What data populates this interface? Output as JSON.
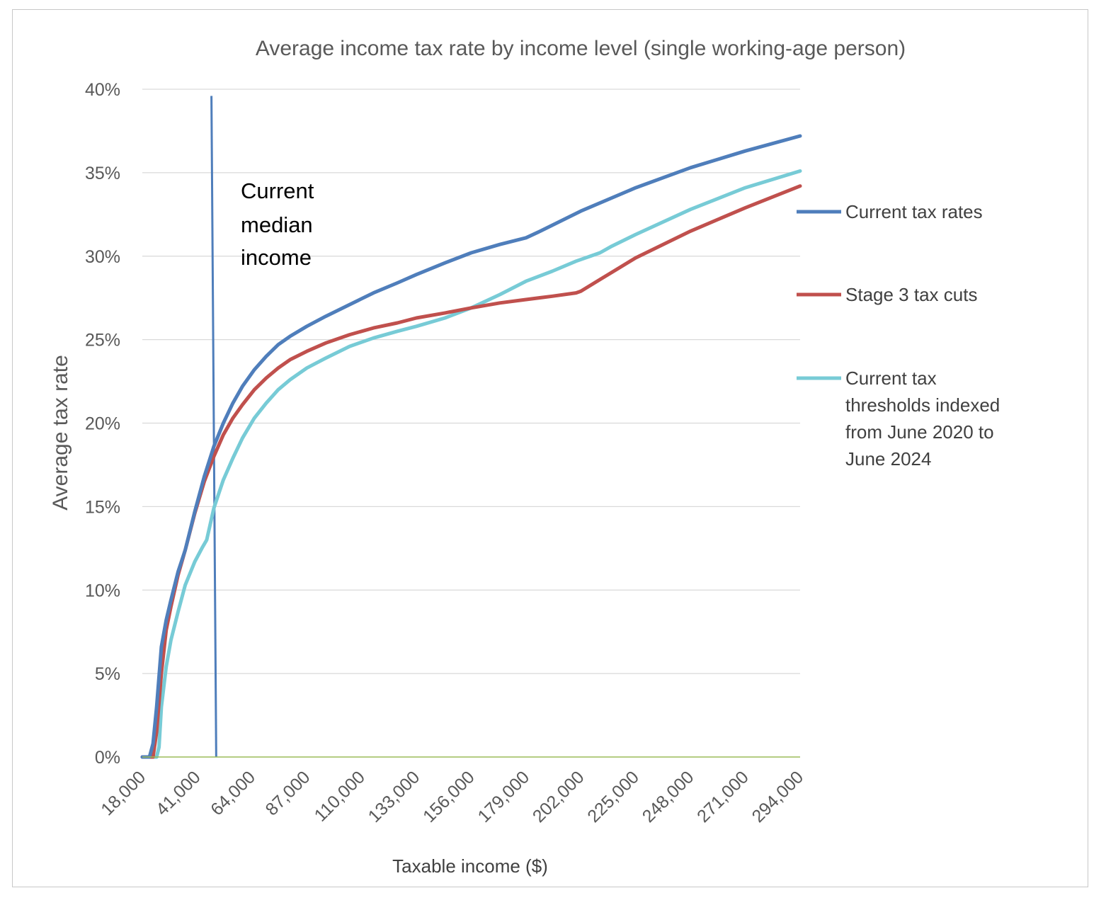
{
  "chart_data": {
    "type": "line",
    "title": "Average income tax rate by income level (single working-age person)",
    "xlabel": "Taxable income ($)",
    "ylabel": "Average tax rate",
    "xlim": [
      18000,
      294000
    ],
    "ylim": [
      0,
      40
    ],
    "x_ticks": [
      18000,
      41000,
      64000,
      87000,
      110000,
      133000,
      156000,
      179000,
      202000,
      225000,
      248000,
      271000,
      294000
    ],
    "x_tick_labels": [
      "18,000",
      "41,000",
      "64,000",
      "87,000",
      "110,000",
      "133,000",
      "156,000",
      "179,000",
      "202,000",
      "225,000",
      "248,000",
      "271,000",
      "294,000"
    ],
    "y_ticks": [
      0,
      5,
      10,
      15,
      20,
      25,
      30,
      35,
      40
    ],
    "y_tick_labels": [
      "0%",
      "5%",
      "10%",
      "15%",
      "20%",
      "25%",
      "30%",
      "35%",
      "40%"
    ],
    "grid": true,
    "legend_position": "right",
    "series": [
      {
        "name": "Current tax rates",
        "color": "#4f7ebb",
        "x": [
          18000,
          21000,
          22500,
          24000,
          26000,
          28000,
          30000,
          33000,
          36000,
          40000,
          44000,
          48000,
          52000,
          56000,
          60000,
          65000,
          70000,
          75000,
          80000,
          87000,
          95000,
          105000,
          115000,
          125000,
          133000,
          145000,
          156000,
          168000,
          179000,
          185000,
          202000,
          225000,
          248000,
          271000,
          294000
        ],
        "y": [
          0,
          0,
          0.8,
          3.0,
          6.6,
          8.2,
          9.4,
          11.1,
          12.4,
          14.7,
          16.8,
          18.6,
          20.0,
          21.2,
          22.2,
          23.2,
          24.0,
          24.7,
          25.2,
          25.8,
          26.4,
          27.1,
          27.8,
          28.4,
          28.9,
          29.6,
          30.2,
          30.7,
          31.1,
          31.5,
          32.7,
          34.1,
          35.3,
          36.3,
          37.2
        ]
      },
      {
        "name": "Stage 3 tax cuts",
        "color": "#c0504d",
        "x": [
          18000,
          21000,
          22500,
          24000,
          26000,
          28000,
          30000,
          33000,
          36000,
          40000,
          44000,
          48000,
          52000,
          56000,
          60000,
          65000,
          70000,
          75000,
          80000,
          87000,
          95000,
          105000,
          115000,
          125000,
          133000,
          145000,
          156000,
          168000,
          179000,
          190000,
          200000,
          202000,
          210000,
          225000,
          248000,
          271000,
          294000
        ],
        "y": [
          0,
          0,
          0,
          1.5,
          5.0,
          7.6,
          9.0,
          10.9,
          12.4,
          14.6,
          16.5,
          18.0,
          19.3,
          20.3,
          21.1,
          22.0,
          22.7,
          23.3,
          23.8,
          24.3,
          24.8,
          25.3,
          25.7,
          26.0,
          26.3,
          26.6,
          26.9,
          27.2,
          27.4,
          27.6,
          27.8,
          27.9,
          28.6,
          29.9,
          31.5,
          32.9,
          34.2
        ]
      },
      {
        "name": "Current tax thresholds indexed from June 2020 to June 2024",
        "color": "#77cbd6",
        "x": [
          18000,
          22000,
          24000,
          25000,
          26000,
          28000,
          30000,
          33000,
          36000,
          40000,
          43000,
          45000,
          48000,
          52000,
          56000,
          60000,
          65000,
          70000,
          75000,
          80000,
          87000,
          95000,
          105000,
          115000,
          125000,
          133000,
          145000,
          156000,
          168000,
          179000,
          190000,
          200000,
          210000,
          215000,
          225000,
          248000,
          271000,
          294000
        ],
        "y": [
          0,
          0,
          0,
          0.6,
          3.0,
          5.4,
          7.0,
          8.7,
          10.3,
          11.7,
          12.5,
          13.0,
          14.9,
          16.6,
          17.9,
          19.1,
          20.3,
          21.2,
          22.0,
          22.6,
          23.3,
          23.9,
          24.6,
          25.1,
          25.5,
          25.8,
          26.3,
          26.9,
          27.7,
          28.5,
          29.1,
          29.7,
          30.2,
          30.6,
          31.3,
          32.8,
          34.1,
          35.1
        ]
      }
    ],
    "annotations": [
      {
        "type": "vertical-line",
        "label_lines": [
          "Current",
          "median",
          "income"
        ],
        "x_top": 47000,
        "x_bottom": 49000,
        "y_top": 39.6,
        "y_bottom": 0,
        "color": "#4f7ebb"
      }
    ],
    "zero_line_color": "#9bbb59"
  }
}
